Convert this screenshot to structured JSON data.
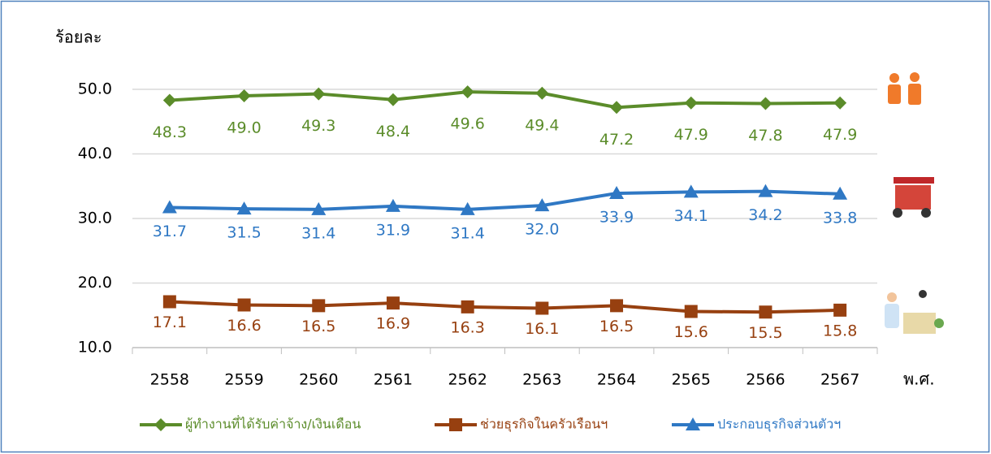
{
  "chart_data": {
    "type": "line",
    "y_label": "ร้อยละ",
    "x_label": "พ.ศ.",
    "categories": [
      "2558",
      "2559",
      "2560",
      "2561",
      "2562",
      "2563",
      "2564",
      "2565",
      "2566",
      "2567"
    ],
    "series": [
      {
        "name": "ผู้ทำงานที่ได้รับค่าจ้าง/เงินเดือน",
        "color": "#5b8c2a",
        "marker": "diamond",
        "values": [
          48.3,
          49.0,
          49.3,
          48.4,
          49.6,
          49.4,
          47.2,
          47.9,
          47.8,
          47.9
        ],
        "value_labels": [
          "48.3",
          "49.0",
          "49.3",
          "48.4",
          "49.6",
          "49.4",
          "47.2",
          "47.9",
          "47.8",
          "47.9"
        ]
      },
      {
        "name": "ช่วยธุรกิจในครัวเรือนฯ",
        "color": "#974010",
        "marker": "square",
        "values": [
          17.1,
          16.6,
          16.5,
          16.9,
          16.3,
          16.1,
          16.5,
          15.6,
          15.5,
          15.8
        ],
        "value_labels": [
          "17.1",
          "16.6",
          "16.5",
          "16.9",
          "16.3",
          "16.1",
          "16.5",
          "15.6",
          "15.5",
          "15.8"
        ]
      },
      {
        "name": "ประกอบธุรกิจส่วนตัวฯ",
        "color": "#2f78c4",
        "marker": "triangle",
        "values": [
          31.7,
          31.5,
          31.4,
          31.9,
          31.4,
          32.0,
          33.9,
          34.1,
          34.2,
          33.8
        ],
        "value_labels": [
          "31.7",
          "31.5",
          "31.4",
          "31.9",
          "31.4",
          "32.0",
          "33.9",
          "34.1",
          "34.2",
          "33.8"
        ]
      }
    ],
    "ylim": [
      10,
      50
    ],
    "yticks": [
      {
        "value": 10,
        "label": "10.0"
      },
      {
        "value": 20,
        "label": "20.0"
      },
      {
        "value": 30,
        "label": "30.0"
      },
      {
        "value": 40,
        "label": "40.0"
      },
      {
        "value": 50,
        "label": "50.0"
      }
    ],
    "grid": true,
    "legend": "bottom"
  }
}
